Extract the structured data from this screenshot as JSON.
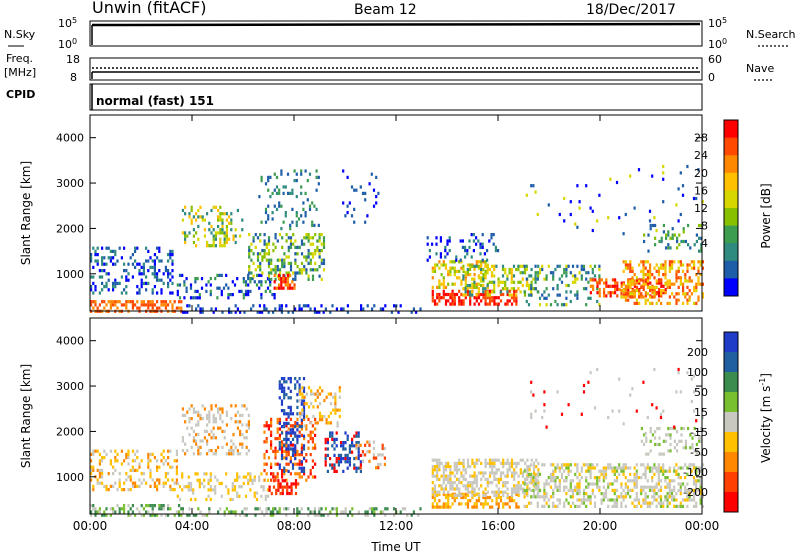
{
  "header": {
    "station": "Unwin (fitACF)",
    "beam": "Beam 12",
    "date": "18/Dec/2017"
  },
  "panels": {
    "nsky": {
      "label": "N.Sky",
      "right_label": "N.Search",
      "ticks_left": [
        "10^5",
        "10^0"
      ],
      "ticks_right": [
        "10^5",
        "10^0"
      ]
    },
    "freq": {
      "label": "Freq.",
      "unit": "[MHz]",
      "right_label": "Nave",
      "ticks_left": [
        "18",
        "8"
      ],
      "ticks_right": [
        "60",
        "0"
      ]
    },
    "cpid": {
      "label": "CPID",
      "value": "normal (fast) 151"
    }
  },
  "chart_data": [
    {
      "type": "heatmap",
      "name": "power",
      "xlabel": "Time UT",
      "ylabel": "Slant Range [km]",
      "x_ticks": [
        "00:00",
        "04:00",
        "08:00",
        "12:00",
        "16:00",
        "20:00",
        "00:00"
      ],
      "xlim": [
        0,
        24
      ],
      "ylim": [
        180,
        4500
      ],
      "y_ticks": [
        1000,
        2000,
        3000,
        4000
      ],
      "colorbar": {
        "label": "Power [dB]",
        "ticks": [
          "28",
          "24",
          "20",
          "16",
          "12",
          "8",
          "4"
        ],
        "colors": [
          "#ff0000",
          "#ff4800",
          "#ff8800",
          "#ffc000",
          "#d7d700",
          "#88c000",
          "#3c9c50",
          "#2f8a80",
          "#1e5ea8",
          "#0000ff"
        ]
      },
      "blobs": [
        {
          "t0": 0.0,
          "t1": 3.6,
          "r0": 180,
          "r1": 420,
          "c": [
            1,
            1,
            2
          ],
          "d": 0.55
        },
        {
          "t0": 0.0,
          "t1": 3.2,
          "r0": 600,
          "r1": 1600,
          "c": [
            8,
            9,
            7
          ],
          "d": 0.3
        },
        {
          "t0": 3.4,
          "t1": 7.2,
          "r0": 450,
          "r1": 1000,
          "c": [
            8,
            9,
            6
          ],
          "d": 0.25
        },
        {
          "t0": 3.6,
          "t1": 6.0,
          "r0": 1600,
          "r1": 2500,
          "c": [
            3,
            4,
            5,
            7
          ],
          "d": 0.3
        },
        {
          "t0": 6.2,
          "t1": 9.2,
          "r0": 900,
          "r1": 1900,
          "c": [
            4,
            5,
            6,
            8
          ],
          "d": 0.35
        },
        {
          "t0": 7.2,
          "t1": 8.0,
          "r0": 700,
          "r1": 1000,
          "c": [
            0,
            1,
            2
          ],
          "d": 0.5
        },
        {
          "t0": 6.6,
          "t1": 9.0,
          "r0": 2000,
          "r1": 3300,
          "c": [
            6,
            7,
            8
          ],
          "d": 0.15
        },
        {
          "t0": 9.8,
          "t1": 11.4,
          "r0": 2100,
          "r1": 3300,
          "c": [
            8,
            9
          ],
          "d": 0.12
        },
        {
          "t0": 3.6,
          "t1": 13.0,
          "r0": 180,
          "r1": 330,
          "c": [
            9,
            8
          ],
          "d": 0.3
        },
        {
          "t0": 13.4,
          "t1": 16.8,
          "r0": 350,
          "r1": 650,
          "c": [
            0,
            1
          ],
          "d": 0.55
        },
        {
          "t0": 13.4,
          "t1": 15.6,
          "r0": 700,
          "r1": 1300,
          "c": [
            2,
            3,
            4,
            5
          ],
          "d": 0.45
        },
        {
          "t0": 14.6,
          "t1": 17.6,
          "r0": 550,
          "r1": 1200,
          "c": [
            3,
            4,
            5,
            7
          ],
          "d": 0.35
        },
        {
          "t0": 13.2,
          "t1": 16.0,
          "r0": 1300,
          "r1": 1900,
          "c": [
            7,
            8,
            9
          ],
          "d": 0.2
        },
        {
          "t0": 17.0,
          "t1": 20.0,
          "r0": 350,
          "r1": 1200,
          "c": [
            7,
            8,
            6,
            4
          ],
          "d": 0.25
        },
        {
          "t0": 19.6,
          "t1": 22.6,
          "r0": 500,
          "r1": 900,
          "c": [
            0,
            1,
            2
          ],
          "d": 0.55
        },
        {
          "t0": 20.8,
          "t1": 24.0,
          "r0": 350,
          "r1": 1300,
          "c": [
            1,
            2,
            3,
            4
          ],
          "d": 0.4
        },
        {
          "t0": 21.6,
          "t1": 24.0,
          "r0": 1500,
          "r1": 2100,
          "c": [
            5,
            6,
            7,
            8
          ],
          "d": 0.25
        },
        {
          "t0": 17.0,
          "t1": 24.0,
          "r0": 1900,
          "r1": 3400,
          "c": [
            8,
            9,
            4
          ],
          "d": 0.03
        }
      ]
    },
    {
      "type": "heatmap",
      "name": "velocity",
      "xlabel": "Time UT",
      "ylabel": "Slant Range [km]",
      "x_ticks": [
        "00:00",
        "04:00",
        "08:00",
        "12:00",
        "16:00",
        "20:00",
        "00:00"
      ],
      "xlim": [
        0,
        24
      ],
      "ylim": [
        180,
        4500
      ],
      "y_ticks": [
        1000,
        2000,
        3000,
        4000
      ],
      "colorbar": {
        "label": "Velocity [m s^-1]",
        "ticks": [
          "200",
          "100",
          "50",
          "15",
          "-15",
          "-50",
          "-100",
          "-200"
        ],
        "colors": [
          "#1e3cc8",
          "#2060a0",
          "#3c8c50",
          "#78c030",
          "#c8c8c0",
          "#ffc000",
          "#ff8800",
          "#ff4000",
          "#ff0000"
        ]
      },
      "blobs": [
        {
          "t0": 0.0,
          "t1": 3.6,
          "r0": 180,
          "r1": 400,
          "c": [
            3,
            4,
            2
          ],
          "d": 0.45
        },
        {
          "t0": 0.0,
          "t1": 3.4,
          "r0": 700,
          "r1": 1600,
          "c": [
            4,
            5,
            6
          ],
          "d": 0.3
        },
        {
          "t0": 3.4,
          "t1": 7.0,
          "r0": 500,
          "r1": 1100,
          "c": [
            4,
            5
          ],
          "d": 0.3
        },
        {
          "t0": 3.6,
          "t1": 6.2,
          "r0": 1500,
          "r1": 2600,
          "c": [
            4,
            4,
            6
          ],
          "d": 0.3
        },
        {
          "t0": 6.8,
          "t1": 8.8,
          "r0": 900,
          "r1": 2300,
          "c": [
            8,
            7,
            6
          ],
          "d": 0.4
        },
        {
          "t0": 7.4,
          "t1": 8.4,
          "r0": 1100,
          "r1": 3200,
          "c": [
            0,
            0,
            1
          ],
          "d": 0.35
        },
        {
          "t0": 8.2,
          "t1": 9.8,
          "r0": 2100,
          "r1": 3000,
          "c": [
            5,
            6,
            4
          ],
          "d": 0.3
        },
        {
          "t0": 9.2,
          "t1": 10.6,
          "r0": 1100,
          "r1": 2000,
          "c": [
            0,
            1,
            8
          ],
          "d": 0.35
        },
        {
          "t0": 10.4,
          "t1": 11.6,
          "r0": 1200,
          "r1": 1800,
          "c": [
            6,
            7,
            4
          ],
          "d": 0.25
        },
        {
          "t0": 7.0,
          "t1": 8.2,
          "r0": 650,
          "r1": 950,
          "c": [
            7,
            8
          ],
          "d": 0.5
        },
        {
          "t0": 3.6,
          "t1": 13.0,
          "r0": 180,
          "r1": 330,
          "c": [
            3,
            2,
            4
          ],
          "d": 0.35
        },
        {
          "t0": 13.4,
          "t1": 16.8,
          "r0": 350,
          "r1": 650,
          "c": [
            5,
            6
          ],
          "d": 0.45
        },
        {
          "t0": 13.4,
          "t1": 17.6,
          "r0": 600,
          "r1": 1400,
          "c": [
            4,
            4,
            4,
            5
          ],
          "d": 0.5
        },
        {
          "t0": 17.0,
          "t1": 24.0,
          "r0": 350,
          "r1": 1300,
          "c": [
            4,
            4,
            4,
            5,
            3
          ],
          "d": 0.45
        },
        {
          "t0": 21.6,
          "t1": 24.0,
          "r0": 1500,
          "r1": 2100,
          "c": [
            4,
            4,
            3
          ],
          "d": 0.3
        },
        {
          "t0": 17.0,
          "t1": 24.0,
          "r0": 1900,
          "r1": 3400,
          "c": [
            8,
            4
          ],
          "d": 0.03
        }
      ]
    }
  ]
}
